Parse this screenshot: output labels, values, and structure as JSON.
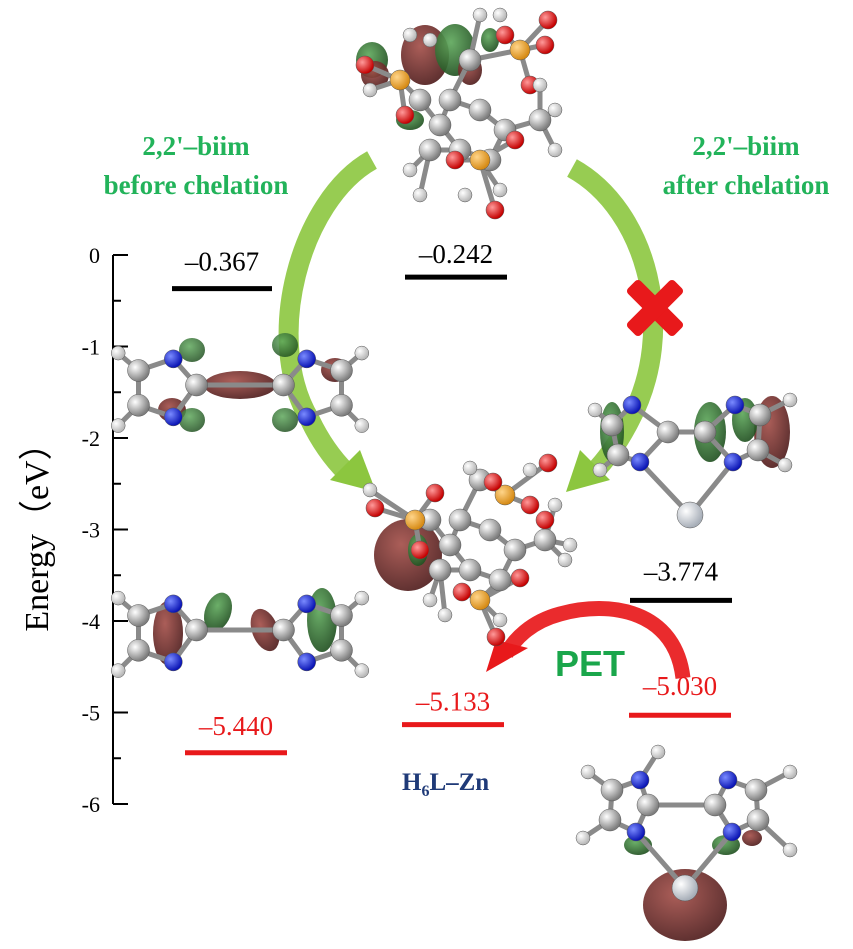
{
  "title_left": {
    "line1": "2,2'–biim",
    "line2": "before chelation"
  },
  "title_right": {
    "line1": "2,2'–biim",
    "line2": "after chelation"
  },
  "axis": {
    "label": "Energy（eV）",
    "ticks": [
      {
        "value": 0,
        "label": "0"
      },
      {
        "value": -1,
        "label": "-1"
      },
      {
        "value": -2,
        "label": "-2"
      },
      {
        "value": -3,
        "label": "-3"
      },
      {
        "value": -4,
        "label": "-4"
      },
      {
        "value": -5,
        "label": "-5"
      },
      {
        "value": -6,
        "label": "-6"
      }
    ]
  },
  "levels": {
    "biim_lumo": {
      "value": -0.367,
      "label": "–0.367",
      "color": "#000000"
    },
    "h6l_lumo": {
      "value": -0.242,
      "label": "–0.242",
      "color": "#000000"
    },
    "complex_lumo": {
      "value": -3.774,
      "label": "–3.774",
      "color": "#000000"
    },
    "biim_homo": {
      "value": -5.44,
      "label": "–5.440",
      "color": "#e8191b"
    },
    "h6l_homo": {
      "value": -5.133,
      "label": "–5.133",
      "color": "#e8191b"
    },
    "complex_homo": {
      "value": -5.03,
      "label": "–5.030",
      "color": "#e8191b"
    }
  },
  "pet_label": "PET",
  "complex_name": {
    "main": "H",
    "sub": "6",
    "rest": "L–Zn"
  },
  "colors": {
    "title_green": "#22b35a",
    "arrow_green": "#8cc63f",
    "pet_green": "#1aa64b",
    "pet_arrow": "#e8191b",
    "cross": "#e8191b",
    "navy": "#1f3a78",
    "lobe_red": "#6e2a2a",
    "lobe_green": "#2f6b2f"
  }
}
